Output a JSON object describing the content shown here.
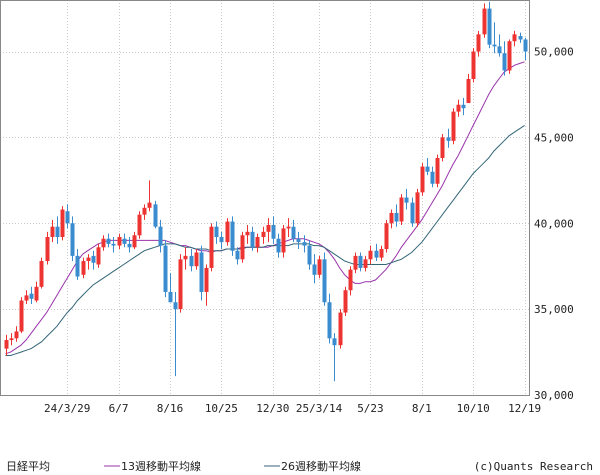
{
  "chart_data": {
    "type": "candlestick",
    "title": "",
    "y_range": [
      30000,
      53000
    ],
    "y_ticks": [
      {
        "value": 50000,
        "label": "50,000"
      },
      {
        "value": 45000,
        "label": "45,000"
      },
      {
        "value": 40000,
        "label": "40,000"
      },
      {
        "value": 35000,
        "label": "35,000"
      },
      {
        "value": 30000,
        "label": "30,000"
      }
    ],
    "x_ticks": [
      {
        "index": 12,
        "label": "24/3/29"
      },
      {
        "index": 22,
        "label": "6/7"
      },
      {
        "index": 32,
        "label": "8/16"
      },
      {
        "index": 42,
        "label": "10/25"
      },
      {
        "index": 52,
        "label": "12/30"
      },
      {
        "index": 61,
        "label": "25/3/14"
      },
      {
        "index": 71,
        "label": "5/23"
      },
      {
        "index": 81,
        "label": "8/1"
      },
      {
        "index": 91,
        "label": "10/10"
      },
      {
        "index": 101,
        "label": "12/19"
      }
    ],
    "grid": true,
    "up_color": "#ee3333",
    "down_color": "#3a8ccf",
    "ohlc": [
      [
        32700,
        33500,
        32300,
        33200
      ],
      [
        33200,
        33600,
        32900,
        33300
      ],
      [
        33300,
        34000,
        33100,
        33700
      ],
      [
        33700,
        35700,
        33600,
        35500
      ],
      [
        35500,
        36100,
        35300,
        35800
      ],
      [
        35900,
        36300,
        35300,
        35600
      ],
      [
        35500,
        36600,
        35400,
        36300
      ],
      [
        36300,
        38000,
        36200,
        37800
      ],
      [
        37800,
        39500,
        37600,
        39200
      ],
      [
        39200,
        40200,
        38900,
        39800
      ],
      [
        39800,
        40400,
        38800,
        39200
      ],
      [
        39200,
        41000,
        39000,
        40800
      ],
      [
        40700,
        41100,
        39700,
        40000
      ],
      [
        40000,
        40400,
        37800,
        38100
      ],
      [
        38100,
        38500,
        36700,
        36900
      ],
      [
        37000,
        38000,
        36800,
        37800
      ],
      [
        37800,
        38200,
        37300,
        38000
      ],
      [
        38100,
        38400,
        37300,
        37700
      ],
      [
        37600,
        38800,
        37400,
        38600
      ],
      [
        38600,
        39300,
        38400,
        39100
      ],
      [
        39100,
        39400,
        38600,
        38800
      ],
      [
        38800,
        39200,
        38300,
        38700
      ],
      [
        38700,
        39400,
        38500,
        39200
      ],
      [
        39100,
        39400,
        38600,
        38800
      ],
      [
        38800,
        39200,
        38300,
        38600
      ],
      [
        38600,
        39500,
        38500,
        39300
      ],
      [
        39300,
        40700,
        39100,
        40500
      ],
      [
        40500,
        41100,
        40200,
        40900
      ],
      [
        40900,
        42500,
        40700,
        41200
      ],
      [
        41100,
        41300,
        39700,
        39800
      ],
      [
        39800,
        40200,
        38300,
        38700
      ],
      [
        38700,
        39000,
        35700,
        36000
      ],
      [
        36000,
        37100,
        35400,
        35400
      ],
      [
        35400,
        36000,
        31100,
        35000
      ],
      [
        35000,
        38200,
        34800,
        37900
      ],
      [
        37900,
        38600,
        37300,
        38100
      ],
      [
        38100,
        38500,
        37200,
        37500
      ],
      [
        37500,
        38500,
        37300,
        38300
      ],
      [
        38300,
        38700,
        35500,
        36000
      ],
      [
        36000,
        37600,
        35200,
        37400
      ],
      [
        37400,
        40000,
        37200,
        39800
      ],
      [
        39800,
        40100,
        38800,
        39200
      ],
      [
        39200,
        39500,
        38500,
        38900
      ],
      [
        38900,
        40300,
        38700,
        40100
      ],
      [
        40100,
        40400,
        38100,
        38400
      ],
      [
        38400,
        38600,
        37600,
        37900
      ],
      [
        37900,
        39500,
        37700,
        39300
      ],
      [
        39300,
        39900,
        38800,
        39500
      ],
      [
        39500,
        39800,
        38400,
        38600
      ],
      [
        38600,
        39400,
        38300,
        39200
      ],
      [
        39200,
        39800,
        38800,
        39500
      ],
      [
        39500,
        40300,
        38900,
        39900
      ],
      [
        39900,
        40400,
        38800,
        39100
      ],
      [
        39100,
        39400,
        38000,
        38300
      ],
      [
        38300,
        39900,
        38000,
        39700
      ],
      [
        39700,
        40300,
        39200,
        39800
      ],
      [
        39800,
        40200,
        38900,
        39100
      ],
      [
        39100,
        39500,
        38500,
        38900
      ],
      [
        38900,
        39300,
        38300,
        38700
      ],
      [
        38700,
        39000,
        37300,
        37600
      ],
      [
        37600,
        38200,
        36500,
        37000
      ],
      [
        37000,
        38100,
        36800,
        37900
      ],
      [
        37900,
        38300,
        35200,
        35400
      ],
      [
        35400,
        35900,
        33000,
        33300
      ],
      [
        33300,
        33600,
        30800,
        32900
      ],
      [
        32900,
        35000,
        32700,
        34800
      ],
      [
        34800,
        36300,
        34600,
        36100
      ],
      [
        36100,
        37500,
        35800,
        37300
      ],
      [
        37300,
        38300,
        37100,
        38100
      ],
      [
        38100,
        38300,
        37200,
        37400
      ],
      [
        37400,
        38100,
        37200,
        37900
      ],
      [
        37900,
        38700,
        37600,
        38400
      ],
      [
        38400,
        38800,
        37800,
        38000
      ],
      [
        38000,
        38700,
        37800,
        38500
      ],
      [
        38500,
        40200,
        38300,
        40000
      ],
      [
        40000,
        40800,
        39700,
        40600
      ],
      [
        40600,
        41100,
        39800,
        40100
      ],
      [
        40100,
        41700,
        39900,
        41500
      ],
      [
        41500,
        42000,
        40800,
        41200
      ],
      [
        41200,
        41500,
        39800,
        40000
      ],
      [
        40000,
        42000,
        39800,
        41800
      ],
      [
        41800,
        43500,
        41600,
        43300
      ],
      [
        43300,
        43800,
        42800,
        43000
      ],
      [
        43000,
        43300,
        42100,
        42300
      ],
      [
        42300,
        44000,
        42100,
        43800
      ],
      [
        43800,
        45200,
        43600,
        45000
      ],
      [
        45000,
        45500,
        44400,
        44800
      ],
      [
        44800,
        46700,
        44600,
        46500
      ],
      [
        46500,
        47200,
        46200,
        46900
      ],
      [
        46900,
        47300,
        46300,
        46700
      ],
      [
        47000,
        48700,
        47000,
        48400
      ],
      [
        48400,
        50200,
        48200,
        50000
      ],
      [
        50000,
        51200,
        49700,
        51000
      ],
      [
        51000,
        52800,
        50800,
        52500
      ],
      [
        52500,
        52900,
        50200,
        50400
      ],
      [
        50400,
        51700,
        49900,
        50300
      ],
      [
        50300,
        51000,
        49700,
        49900
      ],
      [
        49900,
        50600,
        48600,
        48900
      ],
      [
        48900,
        50700,
        48700,
        50600
      ],
      [
        50600,
        51200,
        50300,
        51000
      ],
      [
        50900,
        51100,
        50500,
        50700
      ],
      [
        50700,
        50800,
        49500,
        50000
      ]
    ],
    "series": [
      {
        "name": "",
        "color": "#9933aa",
        "values": [
          32400,
          32500,
          32700,
          32900,
          33200,
          33600,
          34000,
          34400,
          34800,
          35300,
          35800,
          36300,
          36800,
          37300,
          37800,
          38200,
          38400,
          38600,
          38800,
          38900,
          39000,
          39000,
          39000,
          39000,
          39000,
          39000,
          39000,
          39000,
          39000,
          39000,
          39000,
          39000,
          38900,
          38800,
          38700,
          38700,
          38600,
          38500,
          38400,
          38400,
          38300,
          38400,
          38400,
          38500,
          38500,
          38500,
          38600,
          38600,
          38600,
          38600,
          38600,
          38600,
          38700,
          38800,
          38900,
          39000,
          39100,
          39100,
          39100,
          39000,
          38900,
          38800,
          38600,
          38300,
          37900,
          37400,
          37000,
          36700,
          36500,
          36500,
          36600,
          36600,
          36700,
          37000,
          37300,
          37700,
          38100,
          38600,
          39000,
          39400,
          39800,
          40200,
          40700,
          41200,
          41700,
          42200,
          42800,
          43400,
          43900,
          44500,
          45100,
          45700,
          46300,
          46900,
          47500,
          48000,
          48400,
          48800,
          49000,
          49200,
          49300,
          49400
        ]
      },
      {
        "name": "",
        "color": "#336677",
        "values": [
          32300,
          32300,
          32400,
          32500,
          32600,
          32700,
          32900,
          33100,
          33400,
          33700,
          34000,
          34400,
          34800,
          35100,
          35500,
          35800,
          36100,
          36400,
          36600,
          36800,
          37000,
          37200,
          37400,
          37600,
          37800,
          38000,
          38200,
          38400,
          38500,
          38600,
          38700,
          38800,
          38800,
          38800,
          38700,
          38600,
          38600,
          38500,
          38500,
          38500,
          38400,
          38400,
          38400,
          38500,
          38500,
          38500,
          38500,
          38600,
          38600,
          38600,
          38600,
          38700,
          38700,
          38700,
          38700,
          38700,
          38800,
          38800,
          38800,
          38800,
          38700,
          38700,
          38600,
          38400,
          38200,
          38000,
          37800,
          37700,
          37600,
          37600,
          37600,
          37600,
          37600,
          37600,
          37600,
          37700,
          37800,
          37900,
          38100,
          38300,
          38600,
          38900,
          39300,
          39700,
          40100,
          40500,
          40900,
          41300,
          41700,
          42100,
          42500,
          42900,
          43200,
          43500,
          43800,
          44200,
          44500,
          44800,
          45100,
          45300,
          45500,
          45700
        ]
      }
    ]
  },
  "legend": {
    "items": [
      {
        "label": "日経平均",
        "color": ""
      },
      {
        "label": "13週移動平均線",
        "color": "#9933aa"
      },
      {
        "label": "26週移動平均線",
        "color": "#336677"
      }
    ]
  },
  "credit": "(c)Quants Research"
}
